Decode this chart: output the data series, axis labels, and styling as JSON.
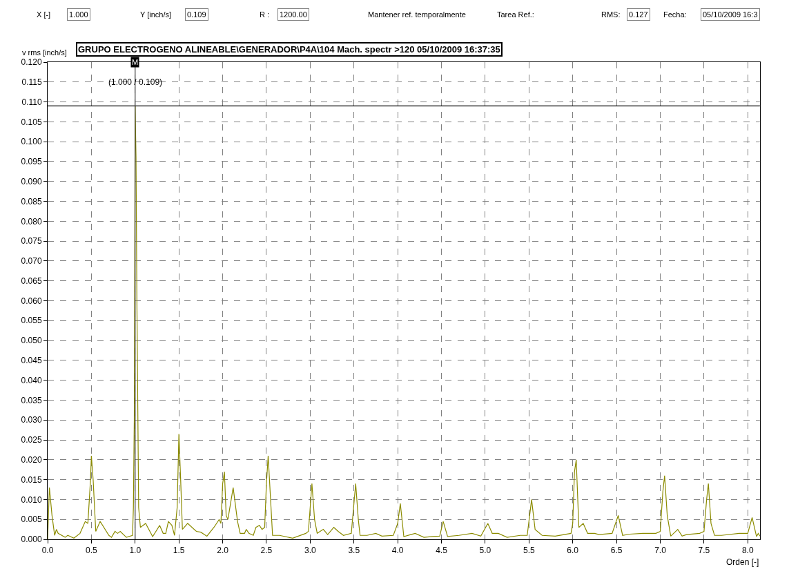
{
  "chart_data": {
    "type": "line",
    "title": "GRUPO ELECTROGENO ALINEABLE\\GENERADOR\\P4A\\104 Mach. spectr >120 05/10/2009 16:37:35",
    "xlabel": "Orden [-]",
    "ylabel": "v rms [inch/s]",
    "x": [
      0.0,
      0.02,
      0.05,
      0.08,
      0.1,
      0.12,
      0.2,
      0.23,
      0.3,
      0.37,
      0.43,
      0.46,
      0.49,
      0.5,
      0.52,
      0.55,
      0.6,
      0.7,
      0.73,
      0.77,
      0.8,
      0.83,
      0.9,
      0.97,
      0.98,
      0.99,
      1.0,
      1.01,
      1.02,
      1.04,
      1.06,
      1.12,
      1.2,
      1.28,
      1.32,
      1.35,
      1.38,
      1.42,
      1.45,
      1.48,
      1.5,
      1.52,
      1.54,
      1.6,
      1.65,
      1.7,
      1.75,
      1.82,
      1.9,
      1.96,
      1.98,
      2.0,
      2.02,
      2.04,
      2.06,
      2.12,
      2.17,
      2.2,
      2.25,
      2.27,
      2.3,
      2.35,
      2.38,
      2.42,
      2.45,
      2.48,
      2.5,
      2.52,
      2.55,
      2.57,
      2.65,
      2.8,
      2.95,
      2.98,
      3.0,
      3.02,
      3.05,
      3.08,
      3.15,
      3.2,
      3.27,
      3.32,
      3.38,
      3.47,
      3.5,
      3.52,
      3.55,
      3.57,
      3.65,
      3.75,
      3.82,
      3.95,
      4.0,
      4.03,
      4.07,
      4.15,
      4.2,
      4.3,
      4.4,
      4.48,
      4.52,
      4.57,
      4.7,
      4.85,
      4.95,
      5.03,
      5.08,
      5.15,
      5.25,
      5.4,
      5.48,
      5.53,
      5.57,
      5.65,
      5.8,
      5.98,
      6.0,
      6.02,
      6.04,
      6.07,
      6.12,
      6.17,
      6.25,
      6.3,
      6.45,
      6.52,
      6.57,
      6.65,
      6.8,
      6.95,
      7.0,
      7.03,
      7.05,
      7.08,
      7.12,
      7.2,
      7.25,
      7.3,
      7.45,
      7.5,
      7.53,
      7.55,
      7.58,
      7.62,
      7.7,
      7.9,
      8.0,
      8.05,
      8.1,
      8.12,
      8.14
    ],
    "series": [
      {
        "color": "#8c8c00",
        "values": [
          0.0,
          0.013,
          0.006,
          0.001,
          0.0025,
          0.0015,
          0.0005,
          0.001,
          0.0003,
          0.0015,
          0.0045,
          0.004,
          0.015,
          0.021,
          0.015,
          0.002,
          0.0045,
          0.001,
          0.0005,
          0.002,
          0.0015,
          0.002,
          0.0005,
          0.001,
          0.008,
          0.03,
          0.109,
          0.096,
          0.06,
          0.008,
          0.003,
          0.004,
          0.0007,
          0.0035,
          0.0015,
          0.0015,
          0.0045,
          0.0035,
          0.001,
          0.008,
          0.0265,
          0.015,
          0.0025,
          0.004,
          0.003,
          0.002,
          0.0018,
          0.0008,
          0.003,
          0.005,
          0.004,
          0.014,
          0.017,
          0.006,
          0.005,
          0.013,
          0.0045,
          0.0015,
          0.0015,
          0.0025,
          0.0015,
          0.001,
          0.003,
          0.0035,
          0.0025,
          0.003,
          0.014,
          0.021,
          0.009,
          0.001,
          0.001,
          0.0003,
          0.0015,
          0.002,
          0.008,
          0.014,
          0.005,
          0.0015,
          0.0025,
          0.0012,
          0.003,
          0.002,
          0.001,
          0.0015,
          0.009,
          0.014,
          0.005,
          0.001,
          0.001,
          0.0015,
          0.0008,
          0.001,
          0.004,
          0.009,
          0.0007,
          0.0012,
          0.0015,
          0.0005,
          0.0007,
          0.0008,
          0.0045,
          0.0007,
          0.001,
          0.0015,
          0.0008,
          0.004,
          0.0015,
          0.0015,
          0.0005,
          0.001,
          0.001,
          0.01,
          0.0025,
          0.001,
          0.0008,
          0.0015,
          0.004,
          0.017,
          0.02,
          0.003,
          0.004,
          0.0015,
          0.0015,
          0.0012,
          0.0015,
          0.006,
          0.001,
          0.0013,
          0.0015,
          0.0015,
          0.002,
          0.012,
          0.016,
          0.006,
          0.0008,
          0.0025,
          0.0008,
          0.0012,
          0.0015,
          0.002,
          0.01,
          0.014,
          0.004,
          0.001,
          0.001,
          0.0015,
          0.0015,
          0.0055,
          0.0007,
          0.0015,
          0.0008
        ]
      }
    ],
    "xlim": [
      0,
      8.14
    ],
    "ylim": [
      0,
      0.12
    ],
    "xticks": [
      {
        "value": 0,
        "label": "0.0"
      },
      0.5,
      {
        "value": 1,
        "label": "1.0"
      },
      1.5,
      {
        "value": 2,
        "label": "2.0"
      },
      2.5,
      {
        "value": 3,
        "label": "3.0"
      },
      3.5,
      {
        "value": 4,
        "label": "4.0"
      },
      4.5,
      {
        "value": 5,
        "label": "5.0"
      },
      5.5,
      {
        "value": 6,
        "label": "6.0"
      },
      6.5,
      {
        "value": 7,
        "label": "7.0"
      },
      7.5,
      {
        "value": 8,
        "label": "8.0"
      }
    ],
    "yticks": [
      {
        "value": 0,
        "label": "0.000"
      },
      {
        "value": 0.005,
        "label": "0.005"
      },
      {
        "value": 0.01,
        "label": "0.010"
      },
      {
        "value": 0.015,
        "label": "0.015"
      },
      {
        "value": 0.02,
        "label": "0.020"
      },
      {
        "value": 0.025,
        "label": "0.025"
      },
      {
        "value": 0.03,
        "label": "0.030"
      },
      {
        "value": 0.035,
        "label": "0.035"
      },
      {
        "value": 0.04,
        "label": "0.040"
      },
      {
        "value": 0.045,
        "label": "0.045"
      },
      {
        "value": 0.05,
        "label": "0.050"
      },
      {
        "value": 0.055,
        "label": "0.055"
      },
      {
        "value": 0.06,
        "label": "0.060"
      },
      {
        "value": 0.065,
        "label": "0.065"
      },
      {
        "value": 0.07,
        "label": "0.070"
      },
      {
        "value": 0.075,
        "label": "0.075"
      },
      {
        "value": 0.08,
        "label": "0.080"
      },
      {
        "value": 0.085,
        "label": "0.085"
      },
      {
        "value": 0.09,
        "label": "0.090"
      },
      {
        "value": 0.095,
        "label": "0.095"
      },
      {
        "value": 0.1,
        "label": "0.100"
      },
      {
        "value": 0.105,
        "label": "0.105"
      },
      {
        "value": 0.11,
        "label": "0.110"
      },
      {
        "value": 0.115,
        "label": "0.115"
      },
      {
        "value": 0.12,
        "label": "0.120"
      }
    ],
    "grid": true,
    "marker": "none",
    "line_style": "solid",
    "ref_lines": [
      {
        "axis": "y",
        "value": 0.109,
        "color": "#000000"
      },
      {
        "axis": "x",
        "value": 1.0,
        "label": "M",
        "color": "#404040"
      }
    ],
    "annotations": [
      "X [-]",
      "1.000",
      "Y [inch/s]",
      "0.109",
      "R :",
      "1200.00",
      "Mantener ref. temporalmente",
      "Tarea Ref.:",
      "RMS:",
      "0.127",
      "Fecha:",
      "05/10/2009 16:3",
      {
        "text": "(1.000 / 0.109)",
        "x": 1.0,
        "y": 0.115
      }
    ]
  }
}
